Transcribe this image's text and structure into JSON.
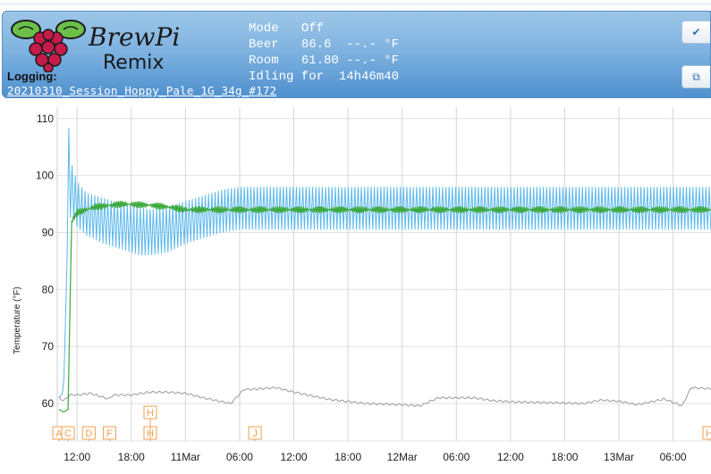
{
  "app": {
    "brand_line1": "BrewPi",
    "brand_line2": "Remix"
  },
  "logging": {
    "label": "Logging:",
    "session": "20210310_Session_Hoppy_Pale_1G_34g_#172"
  },
  "status": {
    "mode_label": "Mode",
    "mode_value": "Off",
    "beer_label": "Beer",
    "beer_value": "86.6",
    "beer_setting": "--.-",
    "beer_unit": "°F",
    "room_label": "Room",
    "room_value": "61.80",
    "room_setting": "--.-",
    "room_unit": "°F",
    "state_label": "Idling for",
    "state_value": "14h46m40"
  },
  "buttons": {
    "top_icon": "check-icon",
    "bottom_icon": "popout-icon"
  },
  "colors": {
    "beer_setting_line": "#5bb8ec",
    "beer_temp_line": "#3aa83a",
    "room_temp_line": "#a8a8a8",
    "annotation": "#f0a050",
    "header_blue": "#5a95d0"
  },
  "chart_data": {
    "type": "line",
    "ylabel": "Temperature (°F)",
    "ylim": [
      55,
      112
    ],
    "yticks": [
      60,
      70,
      80,
      90,
      100,
      110
    ],
    "x_ticks": [
      "12:00",
      "18:00",
      "11Mar",
      "06:00",
      "12:00",
      "18:00",
      "12Mar",
      "06:00",
      "12:00",
      "18:00",
      "13Mar",
      "06:00"
    ],
    "x_hours": [
      12,
      18,
      24,
      30,
      36,
      42,
      48,
      54,
      60,
      66,
      72,
      78
    ],
    "xlim_hours": [
      9.8,
      82.2
    ],
    "annotations_row1": [
      {
        "label": "A",
        "hour": 10.0
      },
      {
        "label": "C",
        "hour": 11.0
      },
      {
        "label": "D",
        "hour": 13.3
      },
      {
        "label": "F",
        "hour": 15.6
      },
      {
        "label": "H",
        "hour": 20.1
      },
      {
        "label": "J",
        "hour": 31.7
      },
      {
        "label": "H",
        "hour": 82.0
      }
    ],
    "annotations_row2": [
      {
        "label": "H",
        "hour": 20.1
      }
    ],
    "series": [
      {
        "key": "beer_setting",
        "color": "#5bb8ec",
        "note": "Oscillating setting/heater band",
        "envelope_hours": [
          10,
          10.5,
          11,
          11.4,
          12,
          13,
          15,
          17,
          19,
          20,
          22,
          24,
          26,
          28,
          30,
          32,
          36,
          40,
          44,
          50,
          60,
          70,
          82
        ],
        "envelope_low": [
          61,
          62,
          92,
          93,
          91,
          89.5,
          88,
          87,
          86,
          86,
          86.5,
          88,
          89,
          90,
          90.5,
          90.5,
          90.5,
          90.5,
          90.5,
          90.5,
          90.5,
          90.5,
          90.5
        ],
        "envelope_high": [
          61,
          75,
          110,
          102,
          99,
          97,
          96,
          95,
          94.5,
          94,
          94.5,
          95.5,
          96.5,
          97.5,
          98,
          98,
          98,
          98,
          98,
          98,
          98,
          98,
          98
        ]
      },
      {
        "key": "beer_temp",
        "color": "#3aa83a",
        "x_hours": [
          10,
          10.5,
          11,
          11.4,
          12,
          14,
          17,
          20,
          22,
          24,
          30,
          40,
          60,
          82
        ],
        "values": [
          59,
          58.5,
          59,
          92,
          93.5,
          94.5,
          95,
          94.8,
          94.5,
          94,
          94,
          94,
          94,
          94
        ]
      },
      {
        "key": "room_temp",
        "color": "#a8a8a8",
        "x_hours": [
          10,
          10.5,
          11.2,
          12,
          13.5,
          15.5,
          16,
          18,
          20,
          22,
          24,
          26,
          29,
          30.5,
          31.5,
          34,
          36,
          40,
          44,
          48,
          50,
          52,
          54,
          56,
          58,
          60,
          66,
          68,
          70,
          72,
          74,
          75,
          77,
          78,
          79,
          80,
          82
        ],
        "values": [
          61,
          60.5,
          61.5,
          61.5,
          61.8,
          60.8,
          61.5,
          61.5,
          62,
          62,
          61.8,
          61,
          60,
          62.5,
          62.5,
          62.8,
          62,
          60.7,
          60,
          59.8,
          59.6,
          61,
          61,
          61,
          60.5,
          60.3,
          60.1,
          60,
          60.6,
          60.4,
          59.8,
          60.1,
          60.8,
          60.2,
          59.6,
          62.8,
          62.6
        ]
      }
    ]
  }
}
